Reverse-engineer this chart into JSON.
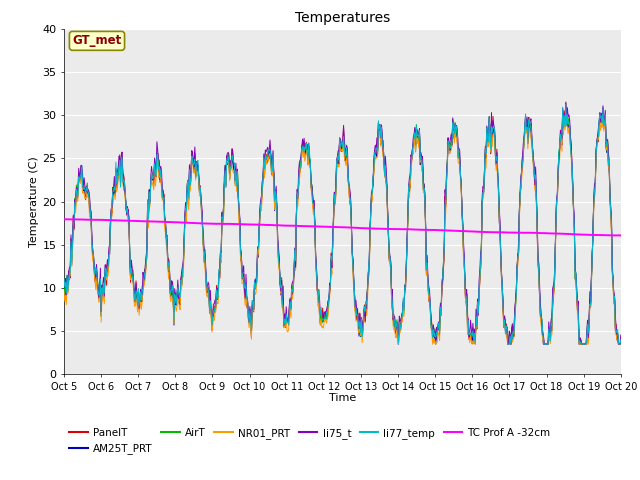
{
  "title": "Temperatures",
  "xlabel": "Time",
  "ylabel": "Temperature (C)",
  "ylim": [
    0,
    40
  ],
  "xlim": [
    0,
    15
  ],
  "xtick_labels": [
    "Oct 5",
    "Oct 6",
    "Oct 7",
    "Oct 8",
    "Oct 9",
    "Oct 10",
    "Oct 11",
    "Oct 12",
    "Oct 13",
    "Oct 14",
    "Oct 15",
    "Oct 16",
    "Oct 17",
    "Oct 18",
    "Oct 19",
    "Oct 20"
  ],
  "series_colors": {
    "PanelT": "#dd0000",
    "AM25T_PRT": "#0000bb",
    "AirT": "#00bb00",
    "NR01_PRT": "#ff9900",
    "li75_t": "#8800bb",
    "li77_temp": "#00bbcc",
    "TC Prof A -32cm": "#ff00ff"
  },
  "annotation_text": "GT_met",
  "annotation_color": "#880000",
  "annotation_bg": "#ffffcc",
  "plot_bg": "#ebebeb",
  "fig_bg": "#ffffff",
  "grid_color": "#ffffff"
}
